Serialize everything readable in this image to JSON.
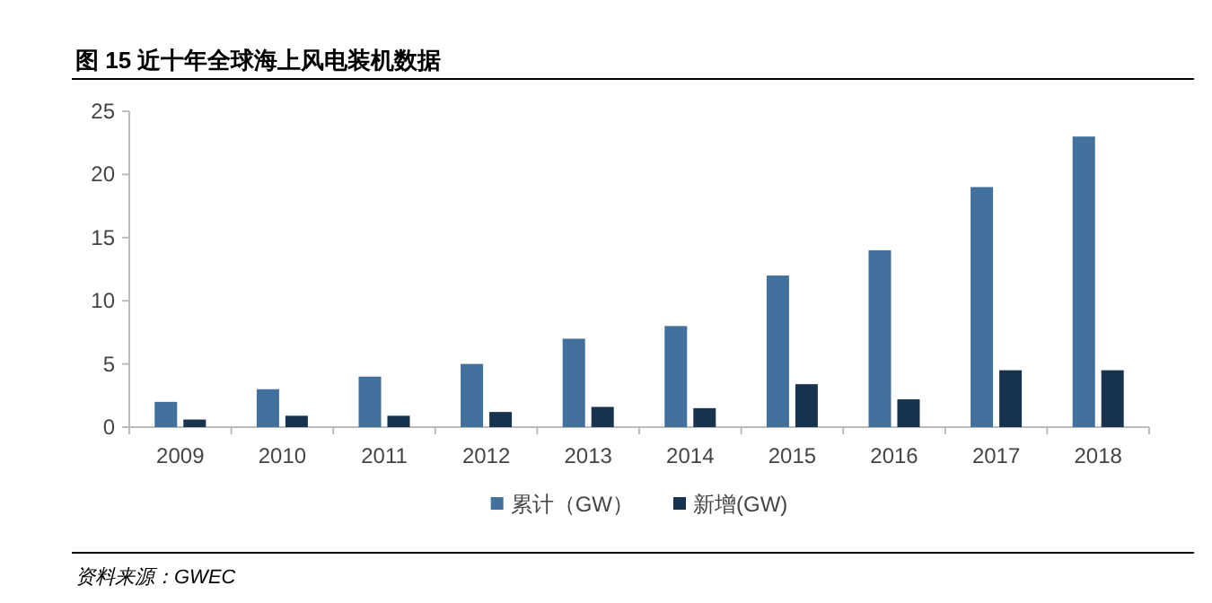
{
  "chart_data": {
    "type": "bar",
    "title": "图 15 近十年全球海上风电装机数据",
    "categories": [
      "2009",
      "2010",
      "2011",
      "2012",
      "2013",
      "2014",
      "2015",
      "2016",
      "2017",
      "2018"
    ],
    "series": [
      {
        "name": "累计（GW）",
        "color": "#41719c",
        "values": [
          2,
          3,
          4,
          5,
          7,
          8,
          12,
          14,
          19,
          23
        ]
      },
      {
        "name": "新增(GW)",
        "color": "#17334f",
        "values": [
          0.6,
          0.9,
          0.9,
          1.2,
          1.6,
          1.5,
          3.4,
          2.2,
          4.5,
          4.5
        ]
      }
    ],
    "ylim": [
      0,
      25
    ],
    "yticks": [
      0,
      5,
      10,
      15,
      20,
      25
    ],
    "grid": false,
    "legend": "bottom",
    "annotations": [
      "资料来源：GWEC"
    ]
  }
}
